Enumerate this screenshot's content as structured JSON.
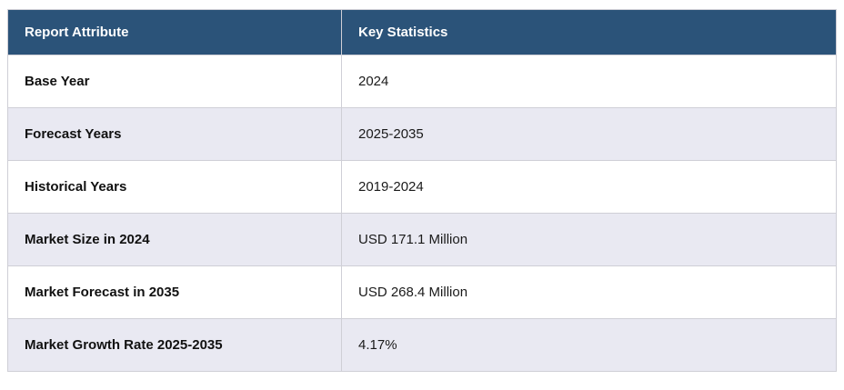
{
  "table": {
    "headers": {
      "attribute": "Report Attribute",
      "statistics": "Key Statistics"
    },
    "rows": [
      {
        "attribute": "Base Year",
        "value": "2024"
      },
      {
        "attribute": "Forecast Years",
        "value": "2025-2035"
      },
      {
        "attribute": "Historical Years",
        "value": "2019-2024"
      },
      {
        "attribute": "Market Size in 2024",
        "value": "USD 171.1 Million"
      },
      {
        "attribute": "Market Forecast in 2035",
        "value": "USD 268.4 Million"
      },
      {
        "attribute": "Market Growth Rate 2025-2035",
        "value": "4.17%"
      }
    ]
  },
  "colors": {
    "header_bg": "#2b5379",
    "header_text": "#ffffff",
    "alt_row_bg": "#e9e9f2",
    "row_bg": "#ffffff",
    "border": "#cfcfd6",
    "body_text": "#1a1a1a"
  }
}
